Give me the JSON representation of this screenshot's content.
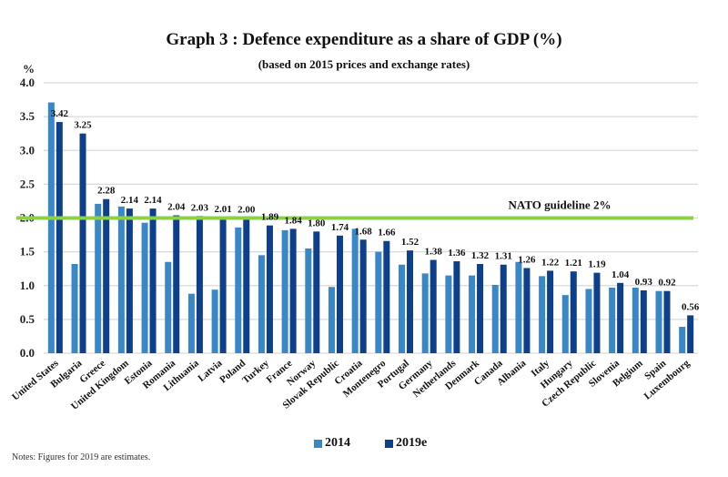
{
  "chart_data": {
    "type": "bar",
    "title": "Graph 3 : Defence expenditure as a share of GDP (%)",
    "subtitle": "(based on 2015 prices and exchange rates)",
    "ylabel": "%",
    "xlabel": "",
    "ylim": [
      0,
      4.0
    ],
    "yticks": [
      "0.0",
      "0.5",
      "1.0",
      "1.5",
      "2.0",
      "2.5",
      "3.0",
      "3.5",
      "4.0"
    ],
    "ytick_values": [
      0,
      0.5,
      1.0,
      1.5,
      2.0,
      2.5,
      3.0,
      3.5,
      4.0
    ],
    "grid": true,
    "categories": [
      "United States",
      "Bulgaria",
      "Greece",
      "United Kingdom",
      "Estonia",
      "Romania",
      "Lithuania",
      "Latvia",
      "Poland",
      "Turkey",
      "France",
      "Norway",
      "Slovak Republic",
      "Croatia",
      "Montenegro",
      "Portugal",
      "Germany",
      "Netherlands",
      "Denmark",
      "Canada",
      "Albania",
      "Italy",
      "Hungary",
      "Czech Republic",
      "Slovenia",
      "Belgium",
      "Spain",
      "Luxembourg"
    ],
    "series": [
      {
        "name": "2014",
        "color": "#3a87c8",
        "values": [
          3.71,
          1.32,
          2.21,
          2.17,
          1.93,
          1.35,
          0.88,
          0.94,
          1.86,
          1.45,
          1.82,
          1.55,
          0.98,
          1.84,
          1.5,
          1.31,
          1.18,
          1.15,
          1.15,
          1.01,
          1.35,
          1.14,
          0.86,
          0.95,
          0.97,
          0.97,
          0.92,
          0.39
        ],
        "labels_shown": false
      },
      {
        "name": "2019e",
        "color": "#0d3f8a",
        "values": [
          3.42,
          3.25,
          2.28,
          2.14,
          2.14,
          2.04,
          2.03,
          2.01,
          2.0,
          1.89,
          1.84,
          1.8,
          1.74,
          1.68,
          1.66,
          1.52,
          1.38,
          1.36,
          1.32,
          1.31,
          1.26,
          1.22,
          1.21,
          1.19,
          1.04,
          0.93,
          0.92,
          0.56
        ],
        "data_labels": [
          "3.42",
          "3.25",
          "2.28",
          "2.14",
          "2.14",
          "2.04",
          "2.03",
          "2.01",
          "2.00",
          "1.89",
          "1.84",
          "1.80",
          "1.74",
          "1.68",
          "1.66",
          "1.52",
          "1.38",
          "1.36",
          "1.32",
          "1.31",
          "1.26",
          "1.22",
          "1.21",
          "1.19",
          "1.04",
          "0.93",
          "0.92",
          "0.56"
        ],
        "labels_shown": true
      }
    ],
    "reference_line": {
      "value": 2.0,
      "label": "NATO guideline 2%",
      "color": "#8cd04a"
    },
    "legend": {
      "position": "bottom-center",
      "entries": [
        "2014",
        "2019e"
      ]
    },
    "notes": "Notes: Figures for 2019 are estimates."
  }
}
